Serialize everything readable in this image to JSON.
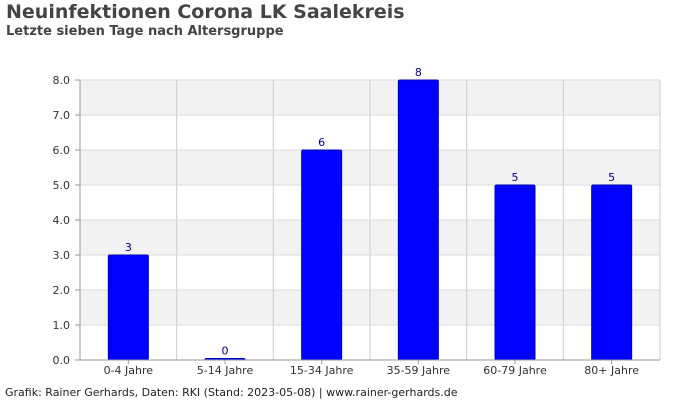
{
  "chart_data": {
    "type": "bar",
    "title": "Neuinfektionen Corona LK Saalekreis",
    "subtitle": "Letzte sieben Tage nach Altersgruppe",
    "xlabel": "",
    "ylabel": "",
    "categories": [
      "0-4 Jahre",
      "5-14 Jahre",
      "15-34 Jahre",
      "35-59 Jahre",
      "60-79 Jahre",
      "80+ Jahre"
    ],
    "values": [
      3,
      0,
      6,
      8,
      5,
      5
    ],
    "data_labels": [
      "3",
      "0",
      "6",
      "8",
      "5",
      "5"
    ],
    "ylim": [
      0,
      8
    ],
    "yticks": [
      "0.0",
      "1.0",
      "2.0",
      "3.0",
      "4.0",
      "5.0",
      "6.0",
      "7.0",
      "8.0"
    ],
    "grid": true,
    "legend": "none",
    "colors": {
      "bar": "#0000ff",
      "bar_border": "#0000b0",
      "data_label": "#00008b",
      "band": "#f2f2f2",
      "grid": "#dcdcdc"
    }
  },
  "footer": "Grafik: Rainer Gerhards, Daten: RKI (Stand: 2023-05-08) | www.rainer-gerhards.de"
}
